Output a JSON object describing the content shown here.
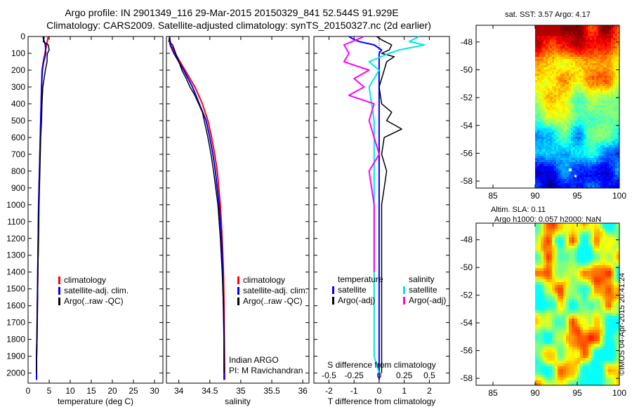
{
  "header": {
    "line1": "Argo profile: IN 2901349_116 29-Mar-2015 20150329_841 52.544S 91.929E",
    "line2": "Climatology: CARS2009. Satellite-adjusted climatology: synTS_20150327.nc (2d earlier)"
  },
  "colors": {
    "climatology": "#ff0000",
    "satellite": "#0000ff",
    "argo": "#000000",
    "cyan": "#00e5e5",
    "magenta": "#ff00ff"
  },
  "depth_axis": {
    "ticks": [
      0,
      100,
      200,
      300,
      400,
      500,
      600,
      700,
      800,
      900,
      1000,
      1100,
      1200,
      1300,
      1400,
      1500,
      1600,
      1700,
      1800,
      1900,
      2000
    ],
    "range": [
      0,
      2060
    ]
  },
  "chart_data": [
    {
      "type": "line",
      "id": "temperature",
      "xlabel": "temperature (deg C)",
      "xlim": [
        0,
        32
      ],
      "xticks": [
        0,
        5,
        10,
        15,
        20,
        25,
        30
      ],
      "legend": [
        "climatology",
        "satellite-adj. clim.",
        "Argo(..raw -QC)"
      ],
      "series": [
        {
          "name": "climatology",
          "color": "#ff0000",
          "width": 2,
          "depth": [
            0,
            10,
            50,
            100,
            150,
            200,
            300,
            400,
            500,
            600,
            800,
            1000,
            1200,
            1400,
            1600,
            1800,
            1900,
            2000,
            2040
          ],
          "values": [
            4.8,
            4.7,
            4.4,
            4.0,
            3.6,
            3.3,
            3.2,
            3.1,
            3.0,
            2.9,
            2.7,
            2.5,
            2.4,
            2.3,
            2.2,
            2.1,
            2.0,
            2.0,
            2.0
          ]
        },
        {
          "name": "satellite-adj. clim.",
          "color": "#0000ff",
          "width": 2,
          "depth": [
            0,
            10,
            50,
            100,
            150,
            200,
            300,
            400,
            500,
            600,
            800,
            1000,
            1200,
            1400,
            1600,
            1800,
            1900,
            2000,
            2040
          ],
          "values": [
            3.6,
            3.6,
            4.1,
            4.2,
            3.7,
            3.4,
            3.2,
            3.1,
            3.0,
            2.9,
            2.7,
            2.5,
            2.4,
            2.3,
            2.2,
            2.1,
            2.0,
            2.0,
            2.0
          ]
        },
        {
          "name": "Argo(..raw -QC)",
          "color": "#000000",
          "width": 1.5,
          "depth": [
            0,
            10,
            30,
            50,
            80,
            100,
            120,
            150,
            200,
            250,
            300,
            400,
            500,
            600,
            700,
            800,
            900,
            1000,
            1200,
            1400,
            1600,
            1800,
            2000
          ],
          "values": [
            3.7,
            3.8,
            3.6,
            4.8,
            5.0,
            4.6,
            4.5,
            4.5,
            4.1,
            3.8,
            3.5,
            3.3,
            3.2,
            3.0,
            2.9,
            2.8,
            2.7,
            2.6,
            2.5,
            2.3,
            2.2,
            2.1,
            2.0
          ]
        }
      ],
      "annotations": []
    },
    {
      "type": "line",
      "id": "salinity",
      "xlabel": "salinity",
      "xlim": [
        33.8,
        36.1
      ],
      "xticks": [
        34,
        34.5,
        35,
        35.5,
        36
      ],
      "xticklabels": [
        "34",
        "34.5",
        "35",
        "35.5",
        "36"
      ],
      "legend": [
        "climatology",
        "satellite-adj. clim.",
        "Argo(..raw -QC)"
      ],
      "series": [
        {
          "name": "climatology",
          "color": "#ff0000",
          "width": 2,
          "depth": [
            0,
            50,
            100,
            200,
            300,
            400,
            500,
            600,
            700,
            800,
            1000,
            1200,
            1400,
            1600,
            1800,
            2000,
            2040
          ],
          "values": [
            33.85,
            33.87,
            33.94,
            34.1,
            34.26,
            34.38,
            34.47,
            34.53,
            34.58,
            34.62,
            34.67,
            34.7,
            34.72,
            34.73,
            34.735,
            34.74,
            34.74
          ]
        },
        {
          "name": "satellite-adj. clim.",
          "color": "#0000ff",
          "width": 2,
          "depth": [
            0,
            50,
            100,
            200,
            300,
            400,
            500,
            600,
            700,
            800,
            1000,
            1200,
            1400,
            1600,
            1800,
            2000,
            2040
          ],
          "values": [
            33.85,
            33.86,
            33.92,
            34.08,
            34.22,
            34.33,
            34.44,
            34.5,
            34.55,
            34.59,
            34.65,
            34.69,
            34.71,
            34.72,
            34.73,
            34.73,
            34.73
          ]
        },
        {
          "name": "Argo(..raw -QC)",
          "color": "#000000",
          "width": 1.5,
          "depth": [
            0,
            30,
            50,
            80,
            100,
            150,
            200,
            250,
            300,
            350,
            400,
            450,
            500,
            600,
            700,
            800,
            1000,
            1200,
            1400,
            1600,
            1800,
            2000
          ],
          "values": [
            33.85,
            33.84,
            33.9,
            33.93,
            33.95,
            34.0,
            34.05,
            34.12,
            34.18,
            34.26,
            34.32,
            34.38,
            34.41,
            34.47,
            34.52,
            34.56,
            34.63,
            34.67,
            34.7,
            34.72,
            34.73,
            34.73
          ]
        }
      ],
      "annotations": [
        "Indian ARGO",
        "PI: M Ravichandran"
      ]
    },
    {
      "type": "line",
      "id": "differences",
      "xlabel": "T difference from climatology",
      "xlabel_top": "S difference from climatology",
      "xlim": [
        -2.6,
        2.8
      ],
      "xticks": [
        -2,
        -1,
        0,
        1,
        2
      ],
      "s_ticks": [
        -0.5,
        -0.25,
        0,
        0.25,
        0.5
      ],
      "s_ticklabels": [
        "-0.5",
        "-0.25",
        "0",
        "0.25",
        "0.5"
      ],
      "legend_headers": [
        "temperature",
        "salinity"
      ],
      "legend": [
        "satellite",
        "Argo(-adj)",
        "satellite",
        "Argo(-adj)"
      ],
      "series": [
        {
          "name": "T satellite",
          "color": "#0000ff",
          "width": 2,
          "depth": [
            0,
            10,
            30,
            50,
            80,
            100,
            150,
            200,
            400,
            600,
            800,
            1000,
            1200,
            1400,
            1600,
            1800,
            2000,
            2040
          ],
          "values": [
            -1.2,
            -1.1,
            -0.8,
            -0.2,
            0.1,
            0.0,
            0.0,
            0.0,
            0.0,
            0.0,
            0.0,
            0.0,
            0.0,
            0.0,
            0.0,
            0.0,
            0.0,
            0.0
          ]
        },
        {
          "name": "T Argo(-adj)",
          "color": "#000000",
          "width": 1.5,
          "depth": [
            0,
            20,
            50,
            80,
            100,
            120,
            150,
            200,
            300,
            400,
            450,
            500,
            550,
            600,
            700,
            800,
            900,
            1000,
            1200,
            1400,
            1600,
            1800,
            2000
          ],
          "values": [
            -0.1,
            0.1,
            0.5,
            0.4,
            0.1,
            0.6,
            0.3,
            0.2,
            0.0,
            0.1,
            0.5,
            0.3,
            0.9,
            0.2,
            0.1,
            0.3,
            0.2,
            0.1,
            0.1,
            0.1,
            0.1,
            0.1,
            0.1
          ]
        },
        {
          "name": "S satellite",
          "color": "#00e5e5",
          "width": 2,
          "depth": [
            0,
            30,
            50,
            80,
            100,
            150,
            200,
            300,
            500,
            700,
            900,
            1100,
            1300,
            1500,
            1700,
            1900,
            2000
          ],
          "values": [
            0.4,
            0.3,
            0.45,
            0.2,
            0.1,
            -0.1,
            0.0,
            -0.1,
            -0.05,
            -0.05,
            -0.05,
            -0.05,
            -0.05,
            -0.05,
            -0.05,
            -0.05,
            0.0
          ]
        },
        {
          "name": "S Argo(-adj)",
          "color": "#ff00ff",
          "width": 2,
          "depth": [
            0,
            50,
            100,
            150,
            200,
            250,
            300,
            350,
            400,
            500,
            600,
            700,
            800,
            1000,
            1200,
            1400
          ],
          "values": [
            -0.15,
            -0.35,
            -0.3,
            -0.35,
            -0.1,
            -0.25,
            -0.15,
            -0.3,
            -0.05,
            -0.1,
            -0.05,
            0.0,
            -0.1,
            -0.05,
            -0.05,
            -0.05
          ]
        }
      ]
    },
    {
      "type": "heatmap",
      "id": "sst_map",
      "title": "sat. SST: 3.57 Argo: 4.17",
      "xlim": [
        83,
        100
      ],
      "xticks": [
        85,
        90,
        95,
        100
      ],
      "ylim": [
        -58.5,
        -46.8
      ],
      "yticks": [
        -48,
        -50,
        -52,
        -54,
        -56,
        -58
      ],
      "data_lon_start": 90
    },
    {
      "type": "heatmap",
      "id": "sla_map",
      "title": "Altim. SLA: 0.11",
      "subtitle": "Argo h1000: 0.057 h2000: NaN",
      "xlim": [
        83,
        100
      ],
      "xticks": [
        85,
        90,
        95,
        100
      ],
      "ylim": [
        -58.5,
        -46.8
      ],
      "yticks": [
        -48,
        -50,
        -52,
        -54,
        -56,
        -58
      ],
      "data_lon_start": 90
    }
  ],
  "footer": {
    "stamp": "©IMOS 04-Apr-2015 20:41:24"
  }
}
